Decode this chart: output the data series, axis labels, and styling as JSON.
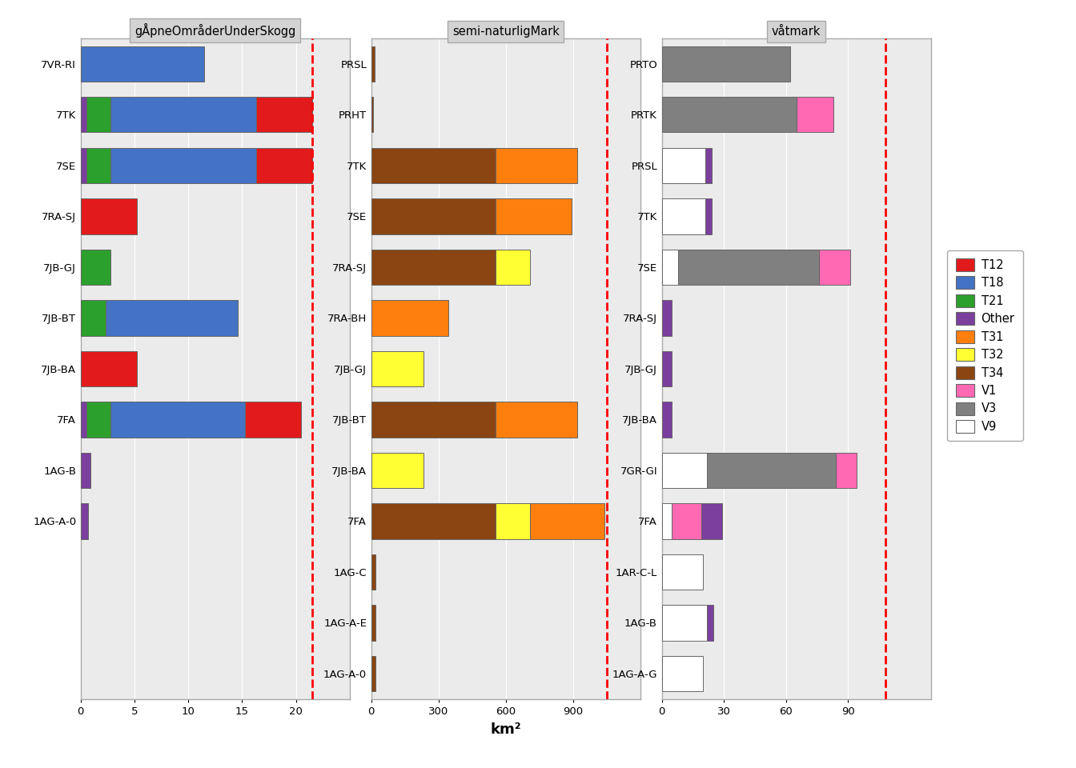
{
  "facets": [
    {
      "name": "gÅpneOmråderUnderSkogg",
      "dashed_line": 21.5,
      "xlim": [
        0,
        25
      ],
      "xticks": [
        0,
        5,
        10,
        15,
        20
      ],
      "categories": [
        "7VR-RI",
        "7TK",
        "7SE",
        "7RA-SJ",
        "7JB-GJ",
        "7JB-BT",
        "7JB-BA",
        "7FA",
        "1AG-B",
        "1AG-A-0"
      ],
      "bars": [
        {
          "cat": "7VR-RI",
          "segments": [
            {
              "color": "T18",
              "val": 11.5
            }
          ]
        },
        {
          "cat": "7TK",
          "segments": [
            {
              "color": "Other",
              "val": 0.5
            },
            {
              "color": "T21",
              "val": 2.3
            },
            {
              "color": "T18",
              "val": 13.5
            },
            {
              "color": "T12",
              "val": 5.2
            }
          ]
        },
        {
          "cat": "7SE",
          "segments": [
            {
              "color": "Other",
              "val": 0.5
            },
            {
              "color": "T21",
              "val": 2.3
            },
            {
              "color": "T18",
              "val": 13.5
            },
            {
              "color": "T12",
              "val": 5.2
            }
          ]
        },
        {
          "cat": "7RA-SJ",
          "segments": [
            {
              "color": "T12",
              "val": 5.2
            }
          ]
        },
        {
          "cat": "7JB-GJ",
          "segments": [
            {
              "color": "T21",
              "val": 2.8
            }
          ]
        },
        {
          "cat": "7JB-BT",
          "segments": [
            {
              "color": "T21",
              "val": 2.3
            },
            {
              "color": "T18",
              "val": 12.3
            }
          ]
        },
        {
          "cat": "7JB-BA",
          "segments": [
            {
              "color": "T12",
              "val": 5.2
            }
          ]
        },
        {
          "cat": "7FA",
          "segments": [
            {
              "color": "Other",
              "val": 0.5
            },
            {
              "color": "T21",
              "val": 2.3
            },
            {
              "color": "T18",
              "val": 12.5
            },
            {
              "color": "T12",
              "val": 5.2
            }
          ]
        },
        {
          "cat": "1AG-B",
          "segments": [
            {
              "color": "Other",
              "val": 0.9
            }
          ]
        },
        {
          "cat": "1AG-A-0",
          "segments": [
            {
              "color": "Other",
              "val": 0.7
            }
          ]
        }
      ]
    },
    {
      "name": "semi-naturligMark",
      "dashed_line": 1050,
      "xlim": [
        0,
        1200
      ],
      "xticks": [
        0,
        300,
        600,
        900
      ],
      "categories": [
        "PRSL",
        "PRHT",
        "7TK",
        "7SE",
        "7RA-SJ",
        "7RA-BH",
        "7JB-GJ",
        "7JB-BT",
        "7JB-BA",
        "7FA",
        "1AG-C",
        "1AG-A-E",
        "1AG-A-0"
      ],
      "bars": [
        {
          "cat": "PRSL",
          "segments": [
            {
              "color": "T34",
              "val": 15
            }
          ]
        },
        {
          "cat": "PRHT",
          "segments": [
            {
              "color": "T34",
              "val": 10
            }
          ]
        },
        {
          "cat": "7TK",
          "segments": [
            {
              "color": "T34",
              "val": 555
            },
            {
              "color": "T31",
              "val": 365
            }
          ]
        },
        {
          "cat": "7SE",
          "segments": [
            {
              "color": "T34",
              "val": 555
            },
            {
              "color": "T31",
              "val": 340
            }
          ]
        },
        {
          "cat": "7RA-SJ",
          "segments": [
            {
              "color": "T34",
              "val": 555
            },
            {
              "color": "T32",
              "val": 155
            }
          ]
        },
        {
          "cat": "7RA-BH",
          "segments": [
            {
              "color": "T31",
              "val": 345
            }
          ]
        },
        {
          "cat": "7JB-GJ",
          "segments": [
            {
              "color": "T32",
              "val": 235
            }
          ]
        },
        {
          "cat": "7JB-BT",
          "segments": [
            {
              "color": "T34",
              "val": 555
            },
            {
              "color": "T31",
              "val": 365
            }
          ]
        },
        {
          "cat": "7JB-BA",
          "segments": [
            {
              "color": "T32",
              "val": 235
            }
          ]
        },
        {
          "cat": "7FA",
          "segments": [
            {
              "color": "T34",
              "val": 555
            },
            {
              "color": "T32",
              "val": 155
            },
            {
              "color": "T31",
              "val": 330
            }
          ]
        },
        {
          "cat": "1AG-C",
          "segments": [
            {
              "color": "T34",
              "val": 20
            }
          ]
        },
        {
          "cat": "1AG-A-E",
          "segments": [
            {
              "color": "T34",
              "val": 20
            }
          ]
        },
        {
          "cat": "1AG-A-0",
          "segments": [
            {
              "color": "T34",
              "val": 20
            }
          ]
        }
      ]
    },
    {
      "name": "våtmark",
      "dashed_line": 108,
      "xlim": [
        0,
        130
      ],
      "xticks": [
        0,
        30,
        60,
        90
      ],
      "categories": [
        "PRTO",
        "PRTK",
        "PRSL",
        "7TK",
        "7SE",
        "7RA-SJ",
        "7JB-GJ",
        "7JB-BA",
        "7GR-GI",
        "7FA",
        "1AR-C-L",
        "1AG-B",
        "1AG-A-G"
      ],
      "bars": [
        {
          "cat": "PRTO",
          "segments": [
            {
              "color": "V3",
              "val": 62
            }
          ]
        },
        {
          "cat": "PRTK",
          "segments": [
            {
              "color": "V3",
              "val": 65
            },
            {
              "color": "V1",
              "val": 18
            }
          ]
        },
        {
          "cat": "PRSL",
          "segments": [
            {
              "color": "V9",
              "val": 21
            },
            {
              "color": "Other",
              "val": 3
            }
          ]
        },
        {
          "cat": "7TK",
          "segments": [
            {
              "color": "V9",
              "val": 21
            },
            {
              "color": "Other",
              "val": 3
            }
          ]
        },
        {
          "cat": "7SE",
          "segments": [
            {
              "color": "V9",
              "val": 8
            },
            {
              "color": "V3",
              "val": 68
            },
            {
              "color": "V1",
              "val": 15
            }
          ]
        },
        {
          "cat": "7RA-SJ",
          "segments": [
            {
              "color": "Other",
              "val": 5
            }
          ]
        },
        {
          "cat": "7JB-GJ",
          "segments": [
            {
              "color": "Other",
              "val": 5
            }
          ]
        },
        {
          "cat": "7JB-BA",
          "segments": [
            {
              "color": "Other",
              "val": 5
            }
          ]
        },
        {
          "cat": "7GR-GI",
          "segments": [
            {
              "color": "V9",
              "val": 22
            },
            {
              "color": "V3",
              "val": 62
            },
            {
              "color": "V1",
              "val": 10
            }
          ]
        },
        {
          "cat": "7FA",
          "segments": [
            {
              "color": "V9",
              "val": 5
            },
            {
              "color": "V1",
              "val": 14
            },
            {
              "color": "Other",
              "val": 10
            }
          ]
        },
        {
          "cat": "1AR-C-L",
          "segments": [
            {
              "color": "V9",
              "val": 20
            }
          ]
        },
        {
          "cat": "1AG-B",
          "segments": [
            {
              "color": "V9",
              "val": 22
            },
            {
              "color": "Other",
              "val": 3
            }
          ]
        },
        {
          "cat": "1AG-A-G",
          "segments": [
            {
              "color": "V9",
              "val": 20
            }
          ]
        }
      ]
    }
  ],
  "color_map": {
    "T12": "#E31A1C",
    "T18": "#4472C4",
    "T21": "#2CA02C",
    "Other": "#7B3F9E",
    "T31": "#FF7F0E",
    "T32": "#FFFF33",
    "T34": "#8B4513",
    "V1": "#FF69B4",
    "V3": "#808080",
    "V9": "#FFFFFF"
  },
  "legend_order": [
    "T12",
    "T18",
    "T21",
    "Other",
    "T31",
    "T32",
    "T34",
    "V1",
    "V3",
    "V9"
  ],
  "xlabel": "km²",
  "bg_color": "#EBEBEB",
  "title_bg_color": "#D3D3D3",
  "panel_border_color": "#AAAAAA",
  "n_rows": [
    10,
    13,
    13
  ]
}
